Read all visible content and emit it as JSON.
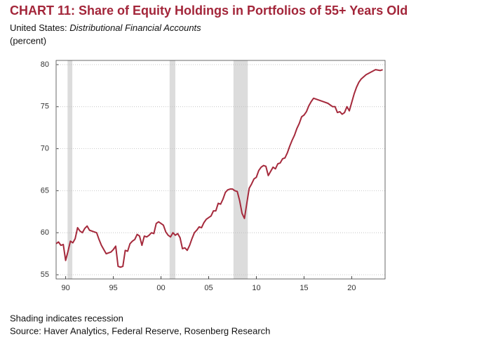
{
  "chart_data": {
    "type": "line",
    "title": "CHART 11: Share of Equity Holdings in Portfolios of 55+ Years Old",
    "subtitle_prefix": "United States:",
    "subtitle_italic": "Distributional Financial Accounts",
    "y_label": "(percent)",
    "notes": [
      "Shading indicates recession",
      "Source: Haver Analytics, Federal Reserve, Rosenberg Research"
    ],
    "xlim": [
      1989,
      2023.5
    ],
    "xticks": [
      {
        "value": 1990,
        "label": "90"
      },
      {
        "value": 1995,
        "label": "95"
      },
      {
        "value": 2000,
        "label": "00"
      },
      {
        "value": 2005,
        "label": "05"
      },
      {
        "value": 2010,
        "label": "10"
      },
      {
        "value": 2015,
        "label": "15"
      },
      {
        "value": 2020,
        "label": "20"
      }
    ],
    "ylim": [
      54.5,
      80.5
    ],
    "yticks": [
      55,
      60,
      65,
      70,
      75,
      80
    ],
    "grid": true,
    "recessions": [
      [
        1990.2,
        1990.7
      ],
      [
        2000.9,
        2001.5
      ],
      [
        2007.6,
        2009.1
      ]
    ],
    "recession_color": "#dcdcdc",
    "series": [
      {
        "color": "#a52a3c",
        "x": [
          1989.0,
          1989.25,
          1989.5,
          1989.75,
          1990.0,
          1990.25,
          1990.5,
          1990.75,
          1991.0,
          1991.25,
          1991.5,
          1991.75,
          1992.0,
          1992.25,
          1992.5,
          1993.0,
          1993.25,
          1993.5,
          1993.75,
          1994.0,
          1994.25,
          1994.75,
          1995.0,
          1995.25,
          1995.5,
          1995.75,
          1996.0,
          1996.25,
          1996.5,
          1996.75,
          1997.0,
          1997.25,
          1997.5,
          1997.75,
          1998.0,
          1998.25,
          1998.5,
          1998.75,
          1999.0,
          1999.25,
          1999.5,
          1999.75,
          2000.0,
          2000.25,
          2000.5,
          2000.75,
          2001.0,
          2001.25,
          2001.5,
          2001.75,
          2002.0,
          2002.25,
          2002.5,
          2002.75,
          2003.0,
          2003.25,
          2003.5,
          2003.75,
          2004.0,
          2004.25,
          2004.5,
          2004.75,
          2005.0,
          2005.25,
          2005.5,
          2005.75,
          2006.0,
          2006.25,
          2006.5,
          2006.75,
          2007.0,
          2007.25,
          2007.5,
          2007.75,
          2008.0,
          2008.25,
          2008.5,
          2008.75,
          2009.0,
          2009.25,
          2009.5,
          2009.75,
          2010.0,
          2010.25,
          2010.5,
          2010.75,
          2011.0,
          2011.25,
          2011.5,
          2011.75,
          2012.0,
          2012.25,
          2012.5,
          2012.75,
          2013.0,
          2013.25,
          2013.5,
          2013.75,
          2014.0,
          2014.25,
          2014.5,
          2014.75,
          2015.0,
          2015.25,
          2015.5,
          2015.75,
          2016.0,
          2016.5,
          2017.0,
          2017.5,
          2018.0,
          2018.25,
          2018.5,
          2018.75,
          2019.0,
          2019.25,
          2019.5,
          2019.75,
          2020.0,
          2020.25,
          2020.5,
          2020.75,
          2021.0,
          2021.5,
          2022.0,
          2022.5,
          2023.0,
          2023.25
        ],
        "values": [
          58.7,
          58.9,
          58.5,
          58.6,
          56.7,
          57.8,
          59.0,
          58.8,
          59.3,
          60.6,
          60.2,
          60.0,
          60.5,
          60.8,
          60.3,
          60.1,
          60.0,
          59.2,
          58.5,
          58.0,
          57.5,
          57.7,
          58.0,
          58.4,
          56.0,
          55.9,
          56.0,
          57.9,
          57.8,
          58.7,
          59.0,
          59.2,
          59.8,
          59.6,
          58.5,
          59.6,
          59.5,
          59.7,
          60.0,
          59.9,
          61.1,
          61.3,
          61.1,
          60.9,
          60.1,
          59.7,
          59.5,
          60.0,
          59.7,
          59.9,
          59.4,
          58.1,
          58.2,
          57.9,
          58.5,
          59.3,
          60.0,
          60.3,
          60.7,
          60.6,
          61.2,
          61.6,
          61.8,
          62.0,
          62.6,
          62.6,
          63.5,
          63.4,
          64.0,
          64.8,
          65.1,
          65.2,
          65.2,
          65.0,
          64.9,
          63.8,
          62.3,
          61.7,
          63.5,
          65.3,
          65.8,
          66.4,
          66.6,
          67.4,
          67.8,
          68.0,
          67.9,
          66.8,
          67.3,
          67.8,
          67.6,
          68.2,
          68.3,
          68.8,
          68.9,
          69.5,
          70.3,
          71.0,
          71.6,
          72.4,
          73.0,
          73.8,
          74.0,
          74.4,
          75.1,
          75.6,
          76.0,
          75.8,
          75.6,
          75.4,
          75.0,
          75.0,
          74.3,
          74.4,
          74.1,
          74.3,
          75.0,
          74.5,
          75.5,
          76.5,
          77.3,
          77.9,
          78.3,
          78.8,
          79.1,
          79.4,
          79.3,
          79.4
        ]
      }
    ]
  }
}
